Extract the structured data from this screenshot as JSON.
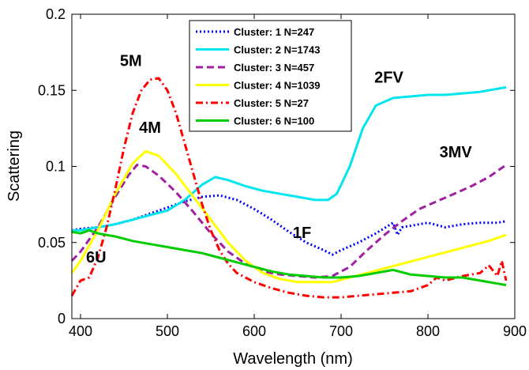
{
  "chart_data": {
    "type": "line",
    "xlabel": "Wavelength (nm)",
    "ylabel": "Scattering",
    "xlim": [
      390,
      900
    ],
    "ylim": [
      0,
      0.2
    ],
    "xticks": [
      400,
      500,
      600,
      700,
      800,
      900
    ],
    "xtick_labels": [
      "400",
      "500",
      "600",
      "700",
      "800",
      "900"
    ],
    "yticks": [
      0,
      0.05,
      0.1,
      0.15,
      0.2
    ],
    "ytick_labels": [
      "0",
      "0.05",
      "0.1",
      "0.15",
      "0.2"
    ],
    "legend_position": "top-center",
    "series": [
      {
        "name": "Cluster: 1 N=247",
        "color": "#0000ff",
        "dash": "dotted",
        "points": [
          [
            390,
            0.058
          ],
          [
            400,
            0.059
          ],
          [
            420,
            0.06
          ],
          [
            440,
            0.062
          ],
          [
            460,
            0.065
          ],
          [
            480,
            0.069
          ],
          [
            500,
            0.073
          ],
          [
            520,
            0.077
          ],
          [
            540,
            0.08
          ],
          [
            560,
            0.081
          ],
          [
            580,
            0.078
          ],
          [
            600,
            0.072
          ],
          [
            620,
            0.065
          ],
          [
            640,
            0.057
          ],
          [
            660,
            0.05
          ],
          [
            680,
            0.045
          ],
          [
            690,
            0.042
          ],
          [
            700,
            0.045
          ],
          [
            720,
            0.05
          ],
          [
            740,
            0.056
          ],
          [
            760,
            0.063
          ],
          [
            765,
            0.055
          ],
          [
            770,
            0.06
          ],
          [
            780,
            0.061
          ],
          [
            800,
            0.063
          ],
          [
            820,
            0.06
          ],
          [
            840,
            0.062
          ],
          [
            860,
            0.063
          ],
          [
            880,
            0.063
          ],
          [
            890,
            0.064
          ]
        ]
      },
      {
        "name": "Cluster: 2 N=1743",
        "color": "#00e5ee",
        "dash": "solid",
        "points": [
          [
            390,
            0.058
          ],
          [
            400,
            0.058
          ],
          [
            420,
            0.06
          ],
          [
            440,
            0.062
          ],
          [
            460,
            0.065
          ],
          [
            480,
            0.068
          ],
          [
            500,
            0.071
          ],
          [
            520,
            0.078
          ],
          [
            540,
            0.088
          ],
          [
            555,
            0.093
          ],
          [
            570,
            0.091
          ],
          [
            590,
            0.087
          ],
          [
            610,
            0.084
          ],
          [
            630,
            0.082
          ],
          [
            650,
            0.08
          ],
          [
            670,
            0.078
          ],
          [
            685,
            0.078
          ],
          [
            695,
            0.082
          ],
          [
            710,
            0.1
          ],
          [
            725,
            0.125
          ],
          [
            740,
            0.14
          ],
          [
            760,
            0.145
          ],
          [
            780,
            0.146
          ],
          [
            800,
            0.147
          ],
          [
            820,
            0.147
          ],
          [
            840,
            0.148
          ],
          [
            860,
            0.149
          ],
          [
            880,
            0.151
          ],
          [
            890,
            0.152
          ]
        ]
      },
      {
        "name": "Cluster: 3 N=457",
        "color": "#a020a0",
        "dash": "dashed",
        "points": [
          [
            390,
            0.038
          ],
          [
            400,
            0.044
          ],
          [
            420,
            0.06
          ],
          [
            440,
            0.08
          ],
          [
            455,
            0.094
          ],
          [
            465,
            0.101
          ],
          [
            475,
            0.1
          ],
          [
            490,
            0.094
          ],
          [
            510,
            0.083
          ],
          [
            530,
            0.07
          ],
          [
            550,
            0.056
          ],
          [
            570,
            0.044
          ],
          [
            590,
            0.036
          ],
          [
            610,
            0.031
          ],
          [
            630,
            0.029
          ],
          [
            650,
            0.028
          ],
          [
            670,
            0.027
          ],
          [
            690,
            0.028
          ],
          [
            710,
            0.034
          ],
          [
            730,
            0.045
          ],
          [
            750,
            0.055
          ],
          [
            770,
            0.064
          ],
          [
            790,
            0.072
          ],
          [
            810,
            0.077
          ],
          [
            830,
            0.082
          ],
          [
            850,
            0.087
          ],
          [
            870,
            0.093
          ],
          [
            890,
            0.101
          ]
        ]
      },
      {
        "name": "Cluster: 4 N=1039",
        "color": "#ffff00",
        "dash": "solid",
        "points": [
          [
            390,
            0.03
          ],
          [
            400,
            0.038
          ],
          [
            420,
            0.058
          ],
          [
            440,
            0.082
          ],
          [
            460,
            0.102
          ],
          [
            475,
            0.11
          ],
          [
            490,
            0.107
          ],
          [
            510,
            0.095
          ],
          [
            530,
            0.08
          ],
          [
            550,
            0.065
          ],
          [
            570,
            0.05
          ],
          [
            590,
            0.038
          ],
          [
            610,
            0.03
          ],
          [
            630,
            0.026
          ],
          [
            650,
            0.024
          ],
          [
            670,
            0.024
          ],
          [
            690,
            0.024
          ],
          [
            710,
            0.027
          ],
          [
            730,
            0.03
          ],
          [
            750,
            0.033
          ],
          [
            770,
            0.036
          ],
          [
            790,
            0.039
          ],
          [
            810,
            0.042
          ],
          [
            830,
            0.045
          ],
          [
            850,
            0.048
          ],
          [
            870,
            0.051
          ],
          [
            890,
            0.055
          ]
        ]
      },
      {
        "name": "Cluster: 5 N=27",
        "color": "#ff0000",
        "dash": "dashdot",
        "points": [
          [
            390,
            0.015
          ],
          [
            395,
            0.02
          ],
          [
            400,
            0.025
          ],
          [
            410,
            0.027
          ],
          [
            420,
            0.04
          ],
          [
            430,
            0.06
          ],
          [
            440,
            0.085
          ],
          [
            450,
            0.112
          ],
          [
            460,
            0.135
          ],
          [
            470,
            0.15
          ],
          [
            480,
            0.157
          ],
          [
            490,
            0.158
          ],
          [
            500,
            0.15
          ],
          [
            510,
            0.135
          ],
          [
            520,
            0.115
          ],
          [
            530,
            0.095
          ],
          [
            540,
            0.075
          ],
          [
            550,
            0.058
          ],
          [
            560,
            0.045
          ],
          [
            570,
            0.036
          ],
          [
            580,
            0.03
          ],
          [
            600,
            0.024
          ],
          [
            620,
            0.02
          ],
          [
            640,
            0.017
          ],
          [
            660,
            0.015
          ],
          [
            680,
            0.014
          ],
          [
            700,
            0.014
          ],
          [
            720,
            0.015
          ],
          [
            740,
            0.016
          ],
          [
            760,
            0.017
          ],
          [
            780,
            0.018
          ],
          [
            800,
            0.022
          ],
          [
            810,
            0.027
          ],
          [
            820,
            0.025
          ],
          [
            840,
            0.028
          ],
          [
            860,
            0.03
          ],
          [
            870,
            0.035
          ],
          [
            880,
            0.028
          ],
          [
            885,
            0.038
          ],
          [
            890,
            0.025
          ]
        ]
      },
      {
        "name": "Cluster: 6 N=100",
        "color": "#00cc00",
        "dash": "solid",
        "points": [
          [
            390,
            0.057
          ],
          [
            400,
            0.056
          ],
          [
            410,
            0.058
          ],
          [
            420,
            0.056
          ],
          [
            440,
            0.054
          ],
          [
            460,
            0.051
          ],
          [
            480,
            0.049
          ],
          [
            500,
            0.047
          ],
          [
            520,
            0.045
          ],
          [
            540,
            0.043
          ],
          [
            560,
            0.04
          ],
          [
            580,
            0.037
          ],
          [
            600,
            0.034
          ],
          [
            620,
            0.031
          ],
          [
            640,
            0.029
          ],
          [
            660,
            0.028
          ],
          [
            680,
            0.027
          ],
          [
            700,
            0.027
          ],
          [
            720,
            0.028
          ],
          [
            740,
            0.03
          ],
          [
            760,
            0.032
          ],
          [
            780,
            0.029
          ],
          [
            800,
            0.028
          ],
          [
            820,
            0.027
          ],
          [
            840,
            0.027
          ],
          [
            860,
            0.025
          ],
          [
            880,
            0.023
          ],
          [
            890,
            0.022
          ]
        ]
      }
    ],
    "annotations": [
      {
        "text": "5M",
        "x": 458,
        "y": 0.166
      },
      {
        "text": "4M",
        "x": 480,
        "y": 0.122
      },
      {
        "text": "2FV",
        "x": 755,
        "y": 0.155
      },
      {
        "text": "3MV",
        "x": 832,
        "y": 0.106
      },
      {
        "text": "1F",
        "x": 655,
        "y": 0.053
      },
      {
        "text": "6U",
        "x": 418,
        "y": 0.037
      }
    ]
  }
}
